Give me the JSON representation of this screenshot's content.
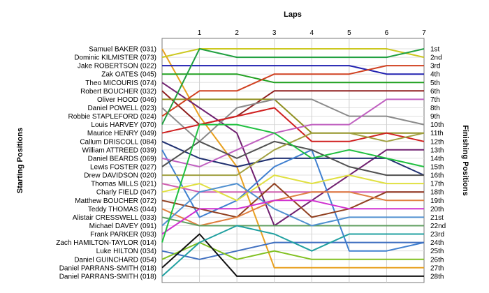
{
  "chart_data": {
    "type": "line",
    "title": "",
    "xlabel": "Laps",
    "ylabel_left": "Starting Positions",
    "ylabel_right": "Finishing Positions",
    "x": [
      0,
      1,
      2,
      3,
      4,
      5,
      6,
      7
    ],
    "x_tick_labels": [
      "1",
      "2",
      "3",
      "4",
      "5",
      "6",
      "7"
    ],
    "ylim": [
      1,
      28
    ],
    "y_inverted": true,
    "grid": true,
    "finishing_labels": [
      "1st",
      "2nd",
      "3rd",
      "4th",
      "5th",
      "6th",
      "7th",
      "8th",
      "9th",
      "10th",
      "11th",
      "12th",
      "13th",
      "14th",
      "15th",
      "16th",
      "17th",
      "18th",
      "19th",
      "20th",
      "21st",
      "22nd",
      "23rd",
      "24th",
      "25th",
      "26th",
      "27th",
      "28th"
    ],
    "series": [
      {
        "name": "Samuel BAKER (031)",
        "color": "#e8a020",
        "values": [
          1,
          9,
          15,
          27,
          27,
          27,
          27,
          27
        ]
      },
      {
        "name": "Dominic KILMISTER (073)",
        "color": "#ccc820",
        "values": [
          2,
          1,
          1,
          1,
          1,
          1,
          1,
          2
        ]
      },
      {
        "name": "Jake ROBERTSON (022)",
        "color": "#2020b0",
        "values": [
          3,
          3,
          3,
          3,
          3,
          3,
          4,
          4
        ]
      },
      {
        "name": "Zak OATES (045)",
        "color": "#20a020",
        "values": [
          4,
          4,
          4,
          5,
          5,
          5,
          5,
          5
        ]
      },
      {
        "name": "Theo MICOURIS (074)",
        "color": "#702070",
        "values": [
          5,
          8,
          11,
          22,
          19,
          16,
          13,
          13
        ]
      },
      {
        "name": "Robert BOUCHER (032)",
        "color": "#902020",
        "values": [
          6,
          10,
          9,
          6,
          6,
          6,
          6,
          6
        ]
      },
      {
        "name": "Oliver HOOD (046)",
        "color": "#909020",
        "values": [
          7,
          7,
          7,
          7,
          11,
          11,
          11,
          11
        ]
      },
      {
        "name": "Daniel POWELL (023)",
        "color": "#8a8a8a",
        "values": [
          8,
          12,
          8,
          7,
          7,
          9,
          9,
          10
        ]
      },
      {
        "name": "Robbie STAPLEFORD (024)",
        "color": "#d04020",
        "values": [
          9,
          6,
          6,
          4,
          4,
          4,
          3,
          3
        ]
      },
      {
        "name": "Louis HARVEY (070)",
        "color": "#20a040",
        "values": [
          10,
          1,
          2,
          2,
          2,
          2,
          2,
          1
        ]
      },
      {
        "name": "Maurice HENRY (049)",
        "color": "#d02020",
        "values": [
          11,
          10,
          9,
          8,
          12,
          12,
          11,
          12
        ]
      },
      {
        "name": "Callum DRISCOLL (084)",
        "color": "#203070",
        "values": [
          12,
          14,
          15,
          14,
          14,
          14,
          14,
          16
        ]
      },
      {
        "name": "William ATTREED (039)",
        "color": "#4080d0",
        "values": [
          13,
          21,
          19,
          15,
          13,
          25,
          25,
          24
        ]
      },
      {
        "name": "Daniel BEARDS (069)",
        "color": "#c060c0",
        "values": [
          14,
          15,
          13,
          11,
          10,
          10,
          7,
          7
        ]
      },
      {
        "name": "Lewis FOSTER (027)",
        "color": "#505050",
        "values": [
          15,
          12,
          14,
          12,
          13,
          15,
          16,
          16
        ]
      },
      {
        "name": "Drew DAVIDSON (020)",
        "color": "#a0a040",
        "values": [
          16,
          16,
          16,
          13,
          11,
          11,
          12,
          11
        ]
      },
      {
        "name": "Thomas MILLS (021)",
        "color": "#d060b0",
        "values": [
          17,
          18,
          18,
          18,
          18,
          18,
          18,
          18
        ]
      },
      {
        "name": "Charly FIELD (047)",
        "color": "#e0e040",
        "values": [
          18,
          17,
          19,
          16,
          17,
          16,
          17,
          17
        ]
      },
      {
        "name": "Matthew BOUCHER (072)",
        "color": "#904020",
        "values": [
          19,
          20,
          21,
          17,
          21,
          20,
          18,
          18
        ]
      },
      {
        "name": "Teddy THOMAS (044)",
        "color": "#e08040",
        "values": [
          20,
          22,
          21,
          19,
          18,
          18,
          19,
          19
        ]
      },
      {
        "name": "Alistair CRESSWELL (033)",
        "color": "#60a060",
        "values": [
          21,
          22,
          22,
          22,
          22,
          22,
          22,
          22
        ]
      },
      {
        "name": "Michael DAVEY (091)",
        "color": "#5090d0",
        "values": [
          22,
          18,
          17,
          20,
          22,
          21,
          21,
          21
        ]
      },
      {
        "name": "Frank PARKER (093)",
        "color": "#d030d0",
        "values": [
          23,
          20,
          20,
          19,
          19,
          20,
          20,
          20
        ]
      },
      {
        "name": "Zach HAMILTON-TAYLOR (014)",
        "color": "#20c040",
        "values": [
          24,
          10,
          10,
          11,
          14,
          13,
          14,
          15
        ]
      },
      {
        "name": "Luke HILTON (034)",
        "color": "#4070c0",
        "values": [
          25,
          26,
          25,
          24,
          24,
          24,
          24,
          24
        ]
      },
      {
        "name": "Daniel GUINCHARD (054)",
        "color": "#80c020",
        "values": [
          26,
          24,
          26,
          25,
          26,
          26,
          26,
          26
        ]
      },
      {
        "name": "Daniel PARRANS-SMITH (018)",
        "color": "#101010",
        "values": [
          27,
          23,
          28,
          28,
          28,
          28,
          28,
          28
        ]
      },
      {
        "name": "Daniel PARRANS-SMITH (018)",
        "color": "#20a0a0",
        "values": [
          28,
          24,
          22,
          23,
          25,
          23,
          23,
          23
        ]
      }
    ]
  }
}
